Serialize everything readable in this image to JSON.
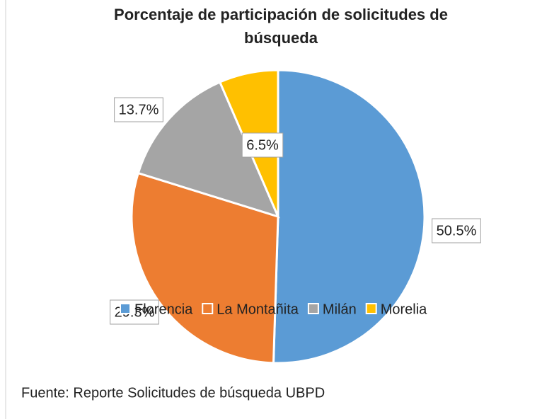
{
  "chart_data": {
    "type": "pie",
    "title": "Porcentaje de participación de solicitudes de búsqueda",
    "categories": [
      "Florencia",
      "La Montañita",
      "Milán",
      "Morelia"
    ],
    "values": [
      50.5,
      29.3,
      13.7,
      6.5
    ],
    "value_labels": [
      "50.5%",
      "29.3%",
      "13.7%",
      "6.5%"
    ],
    "colors": [
      "#5b9bd5",
      "#ed7d31",
      "#a5a5a5",
      "#ffc000"
    ],
    "legend": "bottom",
    "note": "Fuente: Reporte Solicitudes de búsqueda UBPD"
  }
}
